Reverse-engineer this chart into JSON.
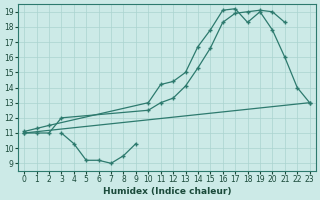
{
  "xlabel": "Humidex (Indice chaleur)",
  "background_color": "#cceae7",
  "grid_color": "#aad4d0",
  "line_color": "#2d7a6e",
  "xlim": [
    -0.5,
    23.5
  ],
  "ylim": [
    8.5,
    19.5
  ],
  "xticks": [
    0,
    1,
    2,
    3,
    4,
    5,
    6,
    7,
    8,
    9,
    10,
    11,
    12,
    13,
    14,
    15,
    16,
    17,
    18,
    19,
    20,
    21,
    22,
    23
  ],
  "yticks": [
    9,
    10,
    11,
    12,
    13,
    14,
    15,
    16,
    17,
    18,
    19
  ],
  "line1_x": [
    0,
    1,
    2,
    10,
    11,
    12,
    13,
    14,
    15,
    16,
    17,
    18,
    19,
    20,
    21,
    22,
    23
  ],
  "line1_y": [
    11.1,
    11.3,
    11.5,
    13.0,
    14.2,
    14.4,
    15.0,
    16.7,
    17.8,
    19.1,
    19.2,
    18.3,
    19.0,
    17.8,
    16.0,
    14.0,
    13.0
  ],
  "line2_x": [
    0,
    1,
    2,
    3,
    10,
    11,
    12,
    13,
    14,
    15,
    16,
    17,
    18,
    19,
    20,
    21
  ],
  "line2_y": [
    11.0,
    11.0,
    11.0,
    12.0,
    12.5,
    13.0,
    13.3,
    14.1,
    15.3,
    16.6,
    18.3,
    18.9,
    19.0,
    19.1,
    19.0,
    18.3
  ],
  "line3_x": [
    0,
    23
  ],
  "line3_y": [
    11.0,
    13.0
  ],
  "line4_x": [
    3,
    4,
    5,
    6,
    7,
    8,
    9
  ],
  "line4_y": [
    11.0,
    10.3,
    9.2,
    9.2,
    9.0,
    9.5,
    10.3
  ],
  "figsize": [
    3.2,
    2.0
  ],
  "dpi": 100
}
